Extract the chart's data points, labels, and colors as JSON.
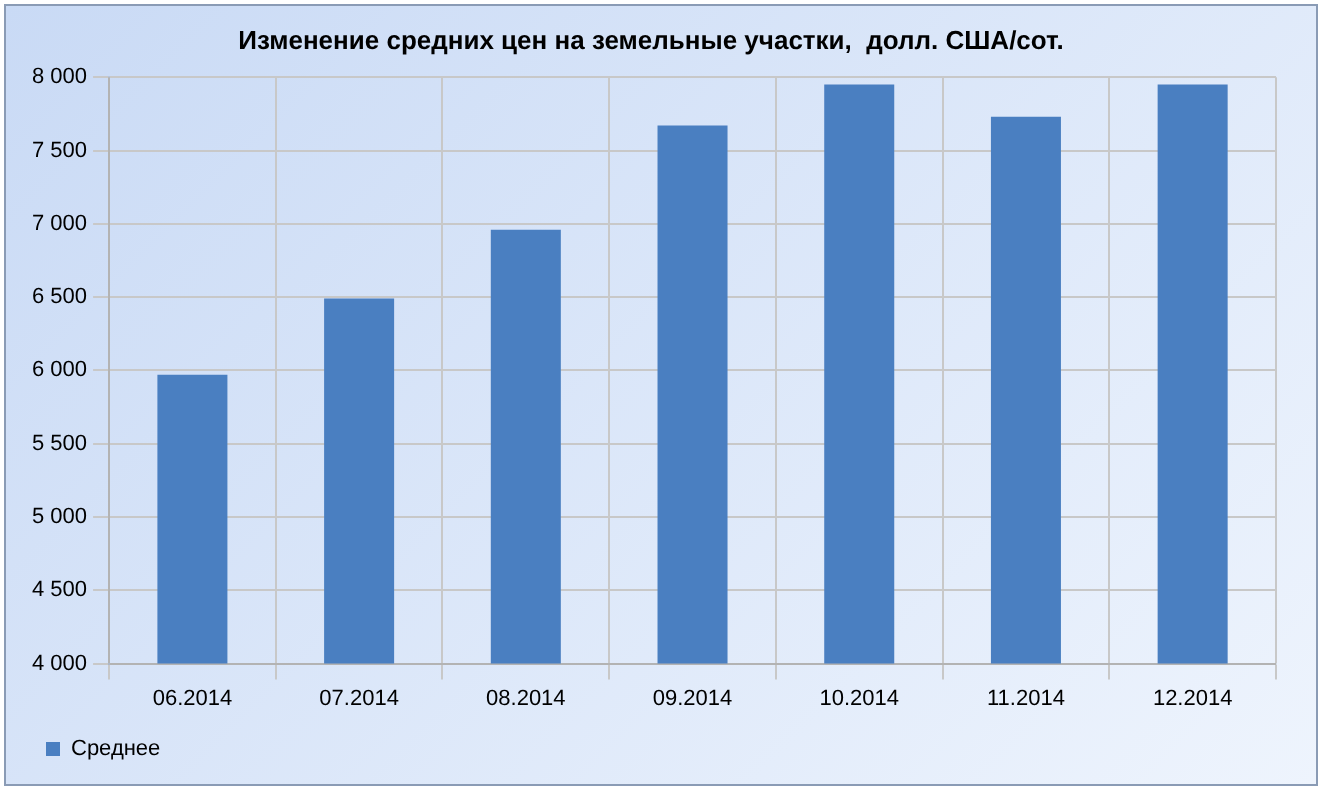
{
  "chart_data": {
    "type": "bar",
    "title": "Изменение средних цен на земельные участки,  долл. США/сот.",
    "categories": [
      "06.2014",
      "07.2014",
      "08.2014",
      "09.2014",
      "10.2014",
      "11.2014",
      "12.2014"
    ],
    "series": [
      {
        "name": "Среднее",
        "color": "#4a7fc1",
        "values": [
          5970,
          6490,
          6960,
          7670,
          7950,
          7730,
          7950
        ]
      }
    ],
    "ylim": [
      4000,
      8000
    ],
    "yticks": [
      {
        "value": 4000,
        "label": "4 000"
      },
      {
        "value": 4500,
        "label": "4 500"
      },
      {
        "value": 5000,
        "label": "5 000"
      },
      {
        "value": 5500,
        "label": "5 500"
      },
      {
        "value": 6000,
        "label": "6 000"
      },
      {
        "value": 6500,
        "label": "6 500"
      },
      {
        "value": 7000,
        "label": "7 000"
      },
      {
        "value": 7500,
        "label": "7 500"
      },
      {
        "value": 8000,
        "label": "8 000"
      }
    ],
    "grid": true,
    "legend": "bottom left"
  }
}
